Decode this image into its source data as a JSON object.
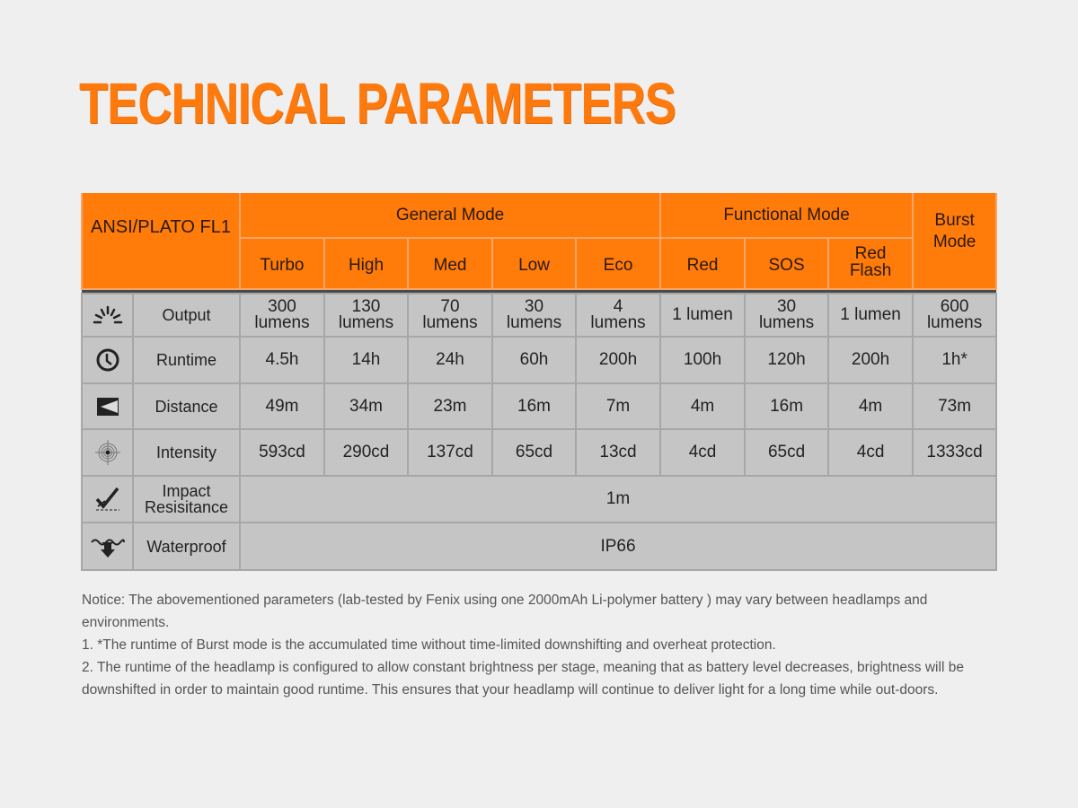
{
  "title": "TECHNICAL PARAMETERS",
  "colors": {
    "accent": "#ff7b0a",
    "cell_bg": "#c6c5c5",
    "page_bg": "#efefef"
  },
  "table": {
    "corner": "ANSI/PLATO FL1",
    "groups": [
      {
        "label": "General Mode"
      },
      {
        "label": "Functional Mode"
      },
      {
        "label": "Burst Mode"
      }
    ],
    "modes": [
      "Turbo",
      "High",
      "Med",
      "Low",
      "Eco",
      "Red",
      "SOS",
      "Red Flash"
    ],
    "rows": [
      {
        "icon": "output-rays-icon",
        "label": "Output",
        "values": [
          "300 lumens",
          "130 lumens",
          "70 lumens",
          "30 lumens",
          "4 lumens",
          "1 lumen",
          "30 lumens",
          "1 lumen",
          "600 lumens"
        ]
      },
      {
        "icon": "clock-icon",
        "label": "Runtime",
        "values": [
          "4.5h",
          "14h",
          "24h",
          "60h",
          "200h",
          "100h",
          "120h",
          "200h",
          "1h*"
        ]
      },
      {
        "icon": "beam-distance-icon",
        "label": "Distance",
        "values": [
          "49m",
          "34m",
          "23m",
          "16m",
          "7m",
          "4m",
          "16m",
          "4m",
          "73m"
        ]
      },
      {
        "icon": "target-intensity-icon",
        "label": "Intensity",
        "values": [
          "593cd",
          "290cd",
          "137cd",
          "65cd",
          "13cd",
          "4cd",
          "65cd",
          "4cd",
          "1333cd"
        ]
      },
      {
        "icon": "impact-check-icon",
        "label": "Impact Resisitance",
        "value": "1m"
      },
      {
        "icon": "waterproof-icon",
        "label": "Waterproof",
        "value": "IP66"
      }
    ]
  },
  "notice": [
    "Notice: The abovementioned parameters (lab-tested by Fenix using one 2000mAh Li-polymer battery ) may vary between headlamps and environments.",
    "1. *The runtime of Burst mode is the accumulated time without time-limited downshifting and overheat protection.",
    "2. The runtime of the headlamp is configured to allow constant brightness per stage, meaning that as battery level decreases, brightness will be downshifted in order to maintain good runtime. This ensures that your headlamp will continue to deliver light for a long time while out-doors."
  ]
}
